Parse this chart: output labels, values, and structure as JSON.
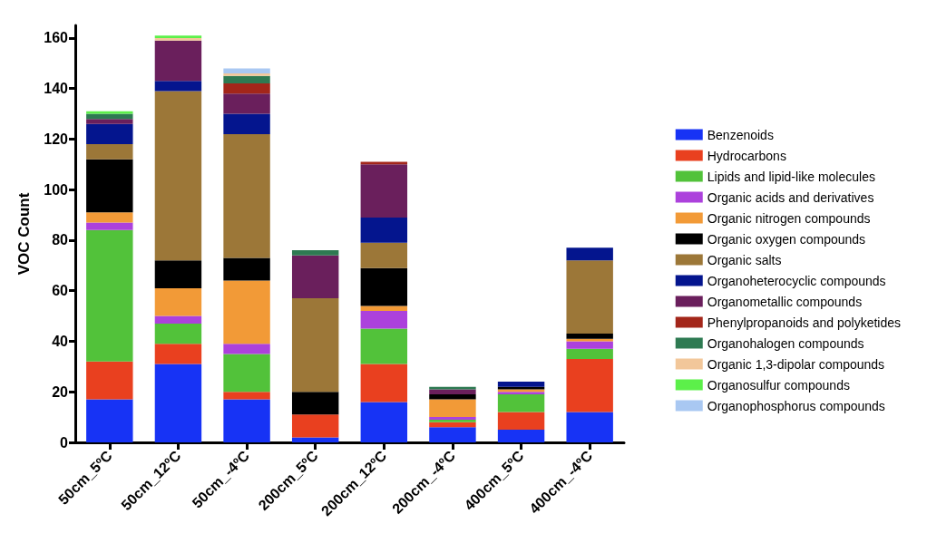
{
  "chart_data": {
    "type": "bar",
    "stacked": true,
    "ylabel": "VOC Count",
    "categories": [
      "50cm_5ºC",
      "50cm_12ºC",
      "50cm_-4ºC",
      "200cm_5ºC",
      "200cm_12ºC",
      "200cm_-4ºC",
      "400cm_5ºC",
      "400cm_-4ºC"
    ],
    "ylim": [
      0,
      165
    ],
    "yticks": [
      0,
      20,
      40,
      60,
      80,
      100,
      120,
      140,
      160
    ],
    "grid": false,
    "legend": "right",
    "series": [
      {
        "name": "Benzenoids",
        "color": "#1733f5",
        "values": [
          17,
          31,
          17,
          2,
          16,
          6,
          5,
          12
        ]
      },
      {
        "name": "Hydrocarbons",
        "color": "#e9401f",
        "values": [
          15,
          8,
          3,
          9,
          15,
          2,
          7,
          21
        ]
      },
      {
        "name": "Lipids and lipid-like molecules",
        "color": "#52c23a",
        "values": [
          52,
          8,
          15,
          0,
          14,
          1,
          7,
          4
        ]
      },
      {
        "name": "Organic acids and derivatives",
        "color": "#ac41dc",
        "values": [
          3,
          3,
          4,
          0,
          7,
          1,
          1,
          3
        ]
      },
      {
        "name": "Organic nitrogen compounds",
        "color": "#f29a37",
        "values": [
          4,
          11,
          25,
          0,
          2,
          7,
          1,
          1
        ]
      },
      {
        "name": "Organic oxygen compounds",
        "color": "#000000",
        "values": [
          21,
          11,
          9,
          9,
          15,
          2,
          1,
          2
        ]
      },
      {
        "name": "Organic salts",
        "color": "#9c7738",
        "values": [
          6,
          67,
          49,
          37,
          10,
          0,
          0,
          29
        ]
      },
      {
        "name": "Organoheterocyclic compounds",
        "color": "#04158e",
        "values": [
          8,
          4,
          8,
          0,
          10,
          0,
          2,
          5
        ]
      },
      {
        "name": "Organometallic compounds",
        "color": "#6a1f5c",
        "values": [
          2,
          16,
          8,
          17,
          21,
          2,
          0,
          0
        ]
      },
      {
        "name": "Phenylpropanoids and polyketides",
        "color": "#a3261a",
        "values": [
          0,
          0,
          4,
          0,
          1,
          0,
          0,
          0
        ]
      },
      {
        "name": "Organohalogen compounds",
        "color": "#2e7a52",
        "values": [
          2,
          0,
          3,
          2,
          0,
          1,
          0,
          0
        ]
      },
      {
        "name": "Organic 1,3-dipolar compounds",
        "color": "#f2c79a",
        "values": [
          0,
          1,
          1,
          0,
          0,
          0,
          0,
          0
        ]
      },
      {
        "name": "Organosulfur compounds",
        "color": "#5cf04a",
        "values": [
          1,
          1,
          0,
          0,
          0,
          0,
          0,
          0
        ]
      },
      {
        "name": "Organophosphorus compounds",
        "color": "#a9c8f2",
        "values": [
          0,
          0,
          2,
          0,
          0,
          0,
          0,
          0
        ]
      }
    ]
  }
}
